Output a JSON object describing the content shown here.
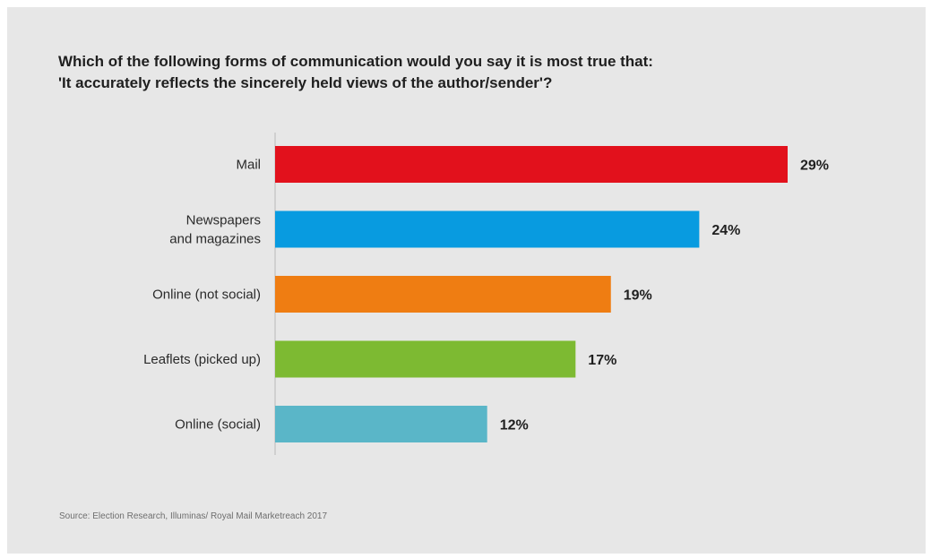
{
  "title_line1": "Which of the following forms of communication would you say it is most true that:",
  "title_line2": "'It accurately reflects the sincerely held views of the author/sender'?",
  "source": "Source: Election Research, Illuminas/ Royal Mail Marketreach 2017",
  "chart_data": {
    "type": "bar",
    "orientation": "horizontal",
    "title": "Which of the following forms of communication would you say it is most true that: 'It accurately reflects the sincerely held views of the author/sender'?",
    "categories": [
      "Mail",
      "Newspapers and magazines",
      "Online (not social)",
      "Leaflets (picked up)",
      "Online (social)"
    ],
    "category_lines": [
      [
        "Mail"
      ],
      [
        "Newspapers",
        "and magazines"
      ],
      [
        "Online (not social)"
      ],
      [
        "Leaflets (picked up)"
      ],
      [
        "Online (social)"
      ]
    ],
    "values": [
      29,
      24,
      19,
      17,
      12
    ],
    "value_labels": [
      "29%",
      "24%",
      "19%",
      "17%",
      "12%"
    ],
    "colors": [
      "#e2111c",
      "#089be0",
      "#ef7d12",
      "#7dba32",
      "#5ab6c8"
    ],
    "unit": "%",
    "xlim": [
      0,
      29
    ],
    "grid": false,
    "legend": "none"
  }
}
